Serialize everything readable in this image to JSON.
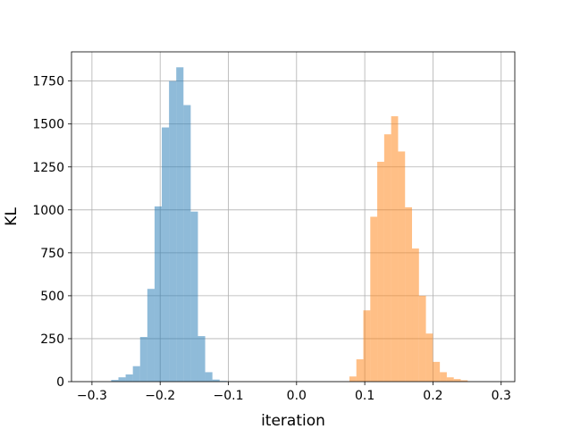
{
  "chart_data": {
    "type": "bar",
    "title": "",
    "xlabel": "iteration",
    "ylabel": "KL",
    "xlim": [
      -0.33,
      0.32
    ],
    "ylim": [
      0,
      1920
    ],
    "grid": true,
    "xticks": [
      -0.3,
      -0.2,
      -0.1,
      0.0,
      0.1,
      0.2,
      0.3
    ],
    "xtick_labels": [
      "−0.3",
      "−0.2",
      "−0.1",
      "0.0",
      "0.1",
      "0.2",
      "0.3"
    ],
    "yticks": [
      0,
      250,
      500,
      750,
      1000,
      1250,
      1500,
      1750
    ],
    "ytick_labels": [
      "0",
      "250",
      "500",
      "750",
      "1000",
      "1250",
      "1500",
      "1750"
    ],
    "series": [
      {
        "color": "#1f77b4",
        "opacity": 0.5,
        "bin_width": 0.0106,
        "bin_starts": [
          -0.2718,
          -0.2612,
          -0.2506,
          -0.24,
          -0.2294,
          -0.2188,
          -0.2082,
          -0.1976,
          -0.187,
          -0.1764,
          -0.1658,
          -0.1552,
          -0.1446,
          -0.134,
          -0.1234,
          -0.1128
        ],
        "values": [
          10,
          25,
          42,
          90,
          260,
          540,
          1020,
          1480,
          1750,
          1830,
          1610,
          990,
          265,
          55,
          12,
          4
        ]
      },
      {
        "color": "#ff7f0e",
        "opacity": 0.5,
        "bin_width": 0.0102,
        "bin_starts": [
          0.0775,
          0.0877,
          0.0979,
          0.1081,
          0.1183,
          0.1285,
          0.1387,
          0.1489,
          0.1591,
          0.1693,
          0.1795,
          0.1897,
          0.1999,
          0.2101,
          0.2203,
          0.2305,
          0.2407
        ],
        "values": [
          30,
          130,
          415,
          960,
          1280,
          1440,
          1545,
          1340,
          1015,
          775,
          500,
          280,
          115,
          55,
          25,
          15,
          8
        ]
      }
    ]
  }
}
